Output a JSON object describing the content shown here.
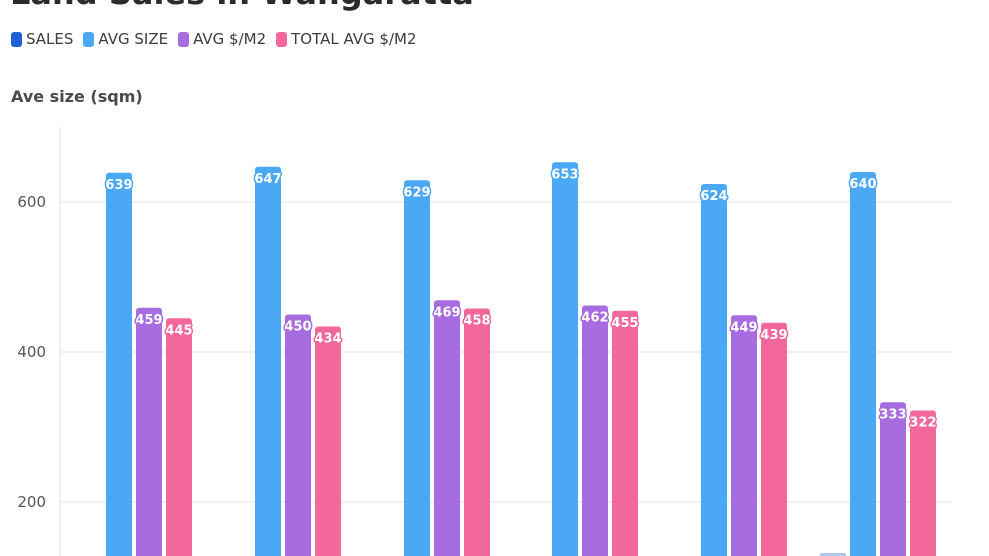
{
  "chart_data": {
    "type": "bar",
    "title": "Land Sales in Wangaratta",
    "ylabel": "Ave size (sqm)",
    "ylim": [
      0,
      700
    ],
    "yticks": [
      200,
      400,
      600
    ],
    "grid": true,
    "legend_position": "top-left",
    "categories": [
      "",
      "",
      "",
      "",
      "",
      ""
    ],
    "series": [
      {
        "name": "SALES",
        "color": "#1f5fd6",
        "values": [
          null,
          null,
          null,
          null,
          null,
          null
        ]
      },
      {
        "name": "AVG SIZE",
        "color": "#4aa8f5",
        "values": [
          639,
          647,
          629,
          653,
          624,
          640
        ]
      },
      {
        "name": "AVG $/M2",
        "color": "#a76de0",
        "values": [
          459,
          450,
          469,
          462,
          449,
          333
        ]
      },
      {
        "name": "TOTAL AVG $/M2",
        "color": "#f2689a",
        "values": [
          445,
          434,
          458,
          455,
          439,
          322
        ]
      }
    ]
  }
}
